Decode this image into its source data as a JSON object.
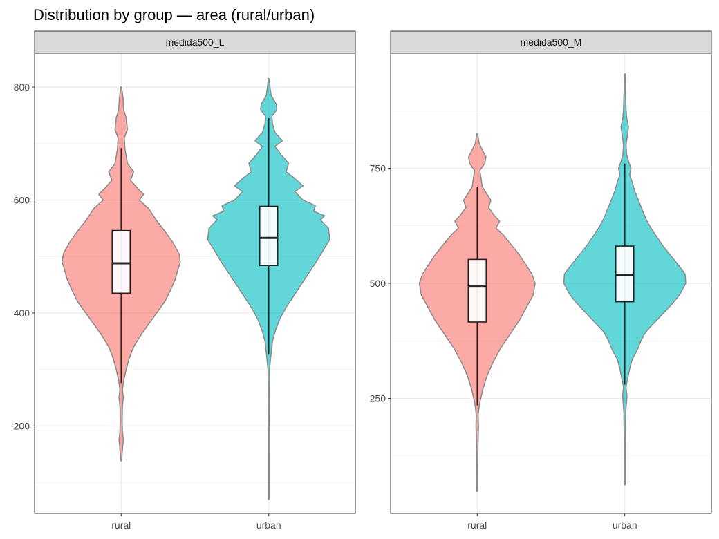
{
  "chart_data": {
    "type": "violin",
    "title": "Distribution by group — area (rural/urban)",
    "categories": [
      "rural",
      "urban"
    ],
    "colors": {
      "rural": "#F8766D",
      "urban": "#00BFC4"
    },
    "panels": [
      {
        "name": "medida500_L",
        "ylim": [
          45,
          860
        ],
        "y_ticks": [
          200,
          400,
          600,
          800
        ],
        "y_minor": [
          100,
          300,
          500,
          700
        ],
        "groups": [
          {
            "category": "rural",
            "box": {
              "q1": 435,
              "median": 488,
              "q3": 546,
              "whisker_low": 276,
              "whisker_high": 692,
              "y_min": 138,
              "y_max": 800
            },
            "density": [
              [
                138,
                0.005
              ],
              [
                165,
                0.025
              ],
              [
                175,
                0.035
              ],
              [
                190,
                0.02
              ],
              [
                210,
                0.015
              ],
              [
                235,
                0.02
              ],
              [
                250,
                0.035
              ],
              [
                265,
                0.02
              ],
              [
                280,
                0.04
              ],
              [
                300,
                0.08
              ],
              [
                320,
                0.13
              ],
              [
                340,
                0.2
              ],
              [
                360,
                0.31
              ],
              [
                380,
                0.44
              ],
              [
                400,
                0.57
              ],
              [
                420,
                0.7
              ],
              [
                440,
                0.79
              ],
              [
                460,
                0.87
              ],
              [
                480,
                0.92
              ],
              [
                490,
                0.95
              ],
              [
                505,
                0.93
              ],
              [
                525,
                0.83
              ],
              [
                545,
                0.7
              ],
              [
                565,
                0.56
              ],
              [
                585,
                0.44
              ],
              [
                600,
                0.29
              ],
              [
                610,
                0.36
              ],
              [
                620,
                0.27
              ],
              [
                635,
                0.15
              ],
              [
                650,
                0.2
              ],
              [
                665,
                0.1
              ],
              [
                690,
                0.06
              ],
              [
                710,
                0.05
              ],
              [
                725,
                0.1
              ],
              [
                745,
                0.08
              ],
              [
                760,
                0.04
              ],
              [
                780,
                0.03
              ],
              [
                800,
                0.005
              ]
            ]
          },
          {
            "category": "urban",
            "box": {
              "q1": 484,
              "median": 533,
              "q3": 589,
              "whisker_low": 327,
              "whisker_high": 745,
              "y_min": 70,
              "y_max": 815
            },
            "density": [
              [
                70,
                0.005
              ],
              [
                150,
                0.006
              ],
              [
                250,
                0.008
              ],
              [
                300,
                0.012
              ],
              [
                320,
                0.03
              ],
              [
                335,
                0.045
              ],
              [
                350,
                0.06
              ],
              [
                370,
                0.11
              ],
              [
                390,
                0.18
              ],
              [
                410,
                0.28
              ],
              [
                430,
                0.4
              ],
              [
                450,
                0.52
              ],
              [
                470,
                0.64
              ],
              [
                490,
                0.76
              ],
              [
                510,
                0.87
              ],
              [
                530,
                0.98
              ],
              [
                550,
                0.96
              ],
              [
                565,
                0.83
              ],
              [
                572,
                0.9
              ],
              [
                580,
                0.72
              ],
              [
                590,
                0.75
              ],
              [
                600,
                0.55
              ],
              [
                615,
                0.42
              ],
              [
                625,
                0.55
              ],
              [
                640,
                0.4
              ],
              [
                650,
                0.28
              ],
              [
                665,
                0.32
              ],
              [
                680,
                0.2
              ],
              [
                695,
                0.1
              ],
              [
                705,
                0.22
              ],
              [
                720,
                0.1
              ],
              [
                735,
                0.06
              ],
              [
                748,
                0.05
              ],
              [
                760,
                0.13
              ],
              [
                770,
                0.12
              ],
              [
                785,
                0.04
              ],
              [
                800,
                0.02
              ],
              [
                815,
                0.005
              ]
            ]
          }
        ]
      },
      {
        "name": "medida500_M",
        "ylim": [
          0,
          1000
        ],
        "y_ticks": [
          250,
          500,
          750
        ],
        "y_minor": [
          125,
          375,
          625,
          875
        ],
        "groups": [
          {
            "category": "rural",
            "box": {
              "q1": 416,
              "median": 493,
              "q3": 552,
              "whisker_low": 235,
              "whisker_high": 709,
              "y_min": 48,
              "y_max": 825
            },
            "density": [
              [
                48,
                0.005
              ],
              [
                100,
                0.008
              ],
              [
                150,
                0.012
              ],
              [
                190,
                0.02
              ],
              [
                215,
                0.015
              ],
              [
                240,
                0.04
              ],
              [
                270,
                0.09
              ],
              [
                300,
                0.16
              ],
              [
                330,
                0.26
              ],
              [
                360,
                0.38
              ],
              [
                390,
                0.53
              ],
              [
                420,
                0.68
              ],
              [
                450,
                0.8
              ],
              [
                475,
                0.9
              ],
              [
                500,
                0.93
              ],
              [
                520,
                0.88
              ],
              [
                545,
                0.76
              ],
              [
                565,
                0.66
              ],
              [
                585,
                0.54
              ],
              [
                605,
                0.42
              ],
              [
                620,
                0.3
              ],
              [
                635,
                0.36
              ],
              [
                650,
                0.26
              ],
              [
                665,
                0.18
              ],
              [
                680,
                0.22
              ],
              [
                695,
                0.15
              ],
              [
                710,
                0.08
              ],
              [
                730,
                0.06
              ],
              [
                745,
                0.04
              ],
              [
                760,
                0.12
              ],
              [
                775,
                0.14
              ],
              [
                790,
                0.08
              ],
              [
                805,
                0.03
              ],
              [
                825,
                0.005
              ]
            ]
          },
          {
            "category": "urban",
            "box": {
              "q1": 460,
              "median": 518,
              "q3": 581,
              "whisker_low": 280,
              "whisker_high": 760,
              "y_min": 62,
              "y_max": 955
            },
            "density": [
              [
                62,
                0.005
              ],
              [
                150,
                0.008
              ],
              [
                220,
                0.015
              ],
              [
                255,
                0.035
              ],
              [
                275,
                0.02
              ],
              [
                295,
                0.05
              ],
              [
                315,
                0.08
              ],
              [
                335,
                0.12
              ],
              [
                355,
                0.2
              ],
              [
                375,
                0.26
              ],
              [
                395,
                0.34
              ],
              [
                415,
                0.48
              ],
              [
                435,
                0.62
              ],
              [
                455,
                0.76
              ],
              [
                475,
                0.88
              ],
              [
                500,
                0.98
              ],
              [
                520,
                0.97
              ],
              [
                540,
                0.86
              ],
              [
                560,
                0.74
              ],
              [
                580,
                0.62
              ],
              [
                600,
                0.52
              ],
              [
                620,
                0.42
              ],
              [
                640,
                0.34
              ],
              [
                660,
                0.28
              ],
              [
                680,
                0.22
              ],
              [
                700,
                0.16
              ],
              [
                720,
                0.12
              ],
              [
                735,
                0.08
              ],
              [
                750,
                0.1
              ],
              [
                765,
                0.06
              ],
              [
                780,
                0.03
              ],
              [
                800,
                0.02
              ],
              [
                820,
                0.04
              ],
              [
                840,
                0.06
              ],
              [
                860,
                0.03
              ],
              [
                880,
                0.02
              ],
              [
                920,
                0.01
              ],
              [
                955,
                0.005
              ]
            ]
          }
        ]
      }
    ]
  }
}
